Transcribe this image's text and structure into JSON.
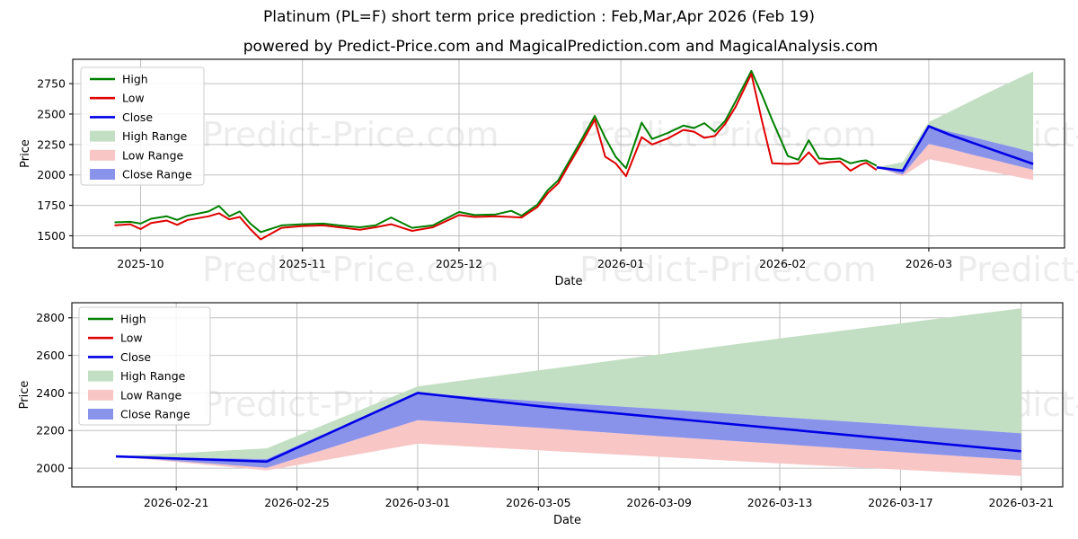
{
  "page": {
    "title": "Platinum (PL=F) short term price prediction : Feb,Mar,Apr 2026 (Feb 19)",
    "subtitle": "powered by Predict-Price.com and MagicalPrediction.com and MagicalAnalysis.com",
    "watermark_text": "Predict-Price.com"
  },
  "colors": {
    "high": "#008000",
    "low": "#e00000",
    "close": "#0000e6",
    "high_band": "#c3dfc3",
    "low_band": "#f9c6c6",
    "close_band": "#8a93ea",
    "grid": "#c0c0c0",
    "frame": "#1a1a1a"
  },
  "legend": [
    {
      "label": "High",
      "swatch": "line",
      "color": "high"
    },
    {
      "label": "Low",
      "swatch": "line",
      "color": "low"
    },
    {
      "label": "Close",
      "swatch": "line",
      "color": "close"
    },
    {
      "label": "High Range",
      "swatch": "patch",
      "color": "high_band"
    },
    {
      "label": "Low Range",
      "swatch": "patch",
      "color": "low_band"
    },
    {
      "label": "Close Range",
      "swatch": "patch",
      "color": "close_band"
    }
  ],
  "chart_data": [
    {
      "type": "line",
      "name": "history-and-prediction",
      "xlabel": "Date",
      "ylabel": "Price",
      "ylim": [
        1400,
        2950
      ],
      "x_domain": [
        "2025-09-18T00:00:00Z",
        "2026-03-27T00:00:00Z"
      ],
      "y_ticks": [
        1500,
        1750,
        2000,
        2250,
        2500,
        2750
      ],
      "x_ticks": [
        {
          "label": "2025-10",
          "date": "2025-10-01"
        },
        {
          "label": "2025-11",
          "date": "2025-11-01"
        },
        {
          "label": "2025-12",
          "date": "2025-12-01"
        },
        {
          "label": "2026-01",
          "date": "2026-01-01"
        },
        {
          "label": "2026-02",
          "date": "2026-02-01"
        },
        {
          "label": "2026-03",
          "date": "2026-03-01"
        }
      ],
      "history": {
        "dates": [
          "2025-09-26",
          "2025-09-29",
          "2025-10-01",
          "2025-10-03",
          "2025-10-06",
          "2025-10-08",
          "2025-10-10",
          "2025-10-14",
          "2025-10-16",
          "2025-10-18",
          "2025-10-20",
          "2025-10-22",
          "2025-10-24",
          "2025-10-28",
          "2025-11-01",
          "2025-11-05",
          "2025-11-08",
          "2025-11-12",
          "2025-11-15",
          "2025-11-18",
          "2025-11-22",
          "2025-11-26",
          "2025-12-01",
          "2025-12-04",
          "2025-12-08",
          "2025-12-11",
          "2025-12-13",
          "2025-12-16",
          "2025-12-18",
          "2025-12-20",
          "2025-12-22",
          "2025-12-24",
          "2025-12-27",
          "2025-12-29",
          "2025-12-31",
          "2026-01-02",
          "2026-01-05",
          "2026-01-07",
          "2026-01-10",
          "2026-01-13",
          "2026-01-15",
          "2026-01-17",
          "2026-01-19",
          "2026-01-21",
          "2026-01-23",
          "2026-01-26",
          "2026-01-28",
          "2026-01-30",
          "2026-02-02",
          "2026-02-04",
          "2026-02-06",
          "2026-02-08",
          "2026-02-10",
          "2026-02-12",
          "2026-02-14",
          "2026-02-16",
          "2026-02-17",
          "2026-02-19"
        ],
        "high": [
          1610,
          1615,
          1600,
          1640,
          1660,
          1630,
          1665,
          1700,
          1745,
          1660,
          1700,
          1600,
          1530,
          1585,
          1595,
          1600,
          1585,
          1570,
          1585,
          1650,
          1565,
          1585,
          1695,
          1670,
          1675,
          1705,
          1665,
          1755,
          1875,
          1955,
          2105,
          2255,
          2485,
          2305,
          2150,
          2055,
          2430,
          2295,
          2345,
          2405,
          2385,
          2425,
          2355,
          2445,
          2605,
          2855,
          2660,
          2450,
          2155,
          2125,
          2285,
          2135,
          2130,
          2135,
          2095,
          2115,
          2120,
          2075
        ],
        "low": [
          1585,
          1595,
          1555,
          1605,
          1625,
          1590,
          1630,
          1660,
          1685,
          1635,
          1655,
          1555,
          1470,
          1565,
          1580,
          1585,
          1570,
          1550,
          1570,
          1595,
          1540,
          1570,
          1670,
          1655,
          1660,
          1655,
          1650,
          1735,
          1850,
          1930,
          2080,
          2225,
          2455,
          2150,
          2095,
          1990,
          2310,
          2250,
          2300,
          2370,
          2355,
          2305,
          2320,
          2420,
          2560,
          2830,
          2450,
          2095,
          2090,
          2095,
          2185,
          2090,
          2105,
          2110,
          2035,
          2085,
          2100,
          2040
        ],
        "close": [
          1598,
          1605,
          1578,
          1622,
          1642,
          1610,
          1648,
          1680,
          1715,
          1648,
          1678,
          1578,
          1500,
          1575,
          1588,
          1592,
          1578,
          1560,
          1578,
          1622,
          1552,
          1578,
          1682,
          1662,
          1668,
          1680,
          1658,
          1745,
          1862,
          1942,
          2092,
          2240,
          2470,
          2228,
          2122,
          2022,
          2370,
          2272,
          2322,
          2388,
          2370,
          2365,
          2338,
          2432,
          2582,
          2842,
          2555,
          2272,
          2122,
          2110,
          2235,
          2112,
          2118,
          2122,
          2065,
          2100,
          2110,
          2058
        ]
      },
      "prediction": {
        "dates": [
          "2026-02-19",
          "2026-02-24",
          "2026-03-01",
          "2026-03-05",
          "2026-03-09",
          "2026-03-13",
          "2026-03-17",
          "2026-03-21"
        ],
        "close": [
          2062,
          2035,
          2400,
          2330,
          2270,
          2210,
          2150,
          2090
        ],
        "close_upper": [
          2062,
          2048,
          2400,
          2355,
          2315,
          2272,
          2230,
          2185
        ],
        "close_lower": [
          2062,
          2002,
          2255,
          2215,
          2170,
          2128,
          2085,
          2042
        ],
        "high_upper": [
          2062,
          2105,
          2435,
          2520,
          2605,
          2690,
          2770,
          2850
        ],
        "low_lower": [
          2062,
          1988,
          2130,
          2095,
          2060,
          2025,
          1992,
          1958
        ]
      }
    },
    {
      "type": "line",
      "name": "prediction-detail",
      "xlabel": "Date",
      "ylabel": "Price",
      "ylim": [
        1900,
        2880
      ],
      "x_domain": [
        "2026-02-17T13:00:00Z",
        "2026-03-22T09:00:00Z"
      ],
      "y_ticks": [
        2000,
        2200,
        2400,
        2600,
        2800
      ],
      "x_ticks": [
        {
          "label": "2026-02-21",
          "date": "2026-02-21"
        },
        {
          "label": "2026-02-25",
          "date": "2026-02-25"
        },
        {
          "label": "2026-03-01",
          "date": "2026-03-01"
        },
        {
          "label": "2026-03-05",
          "date": "2026-03-05"
        },
        {
          "label": "2026-03-09",
          "date": "2026-03-09"
        },
        {
          "label": "2026-03-13",
          "date": "2026-03-13"
        },
        {
          "label": "2026-03-17",
          "date": "2026-03-17"
        },
        {
          "label": "2026-03-21",
          "date": "2026-03-21"
        }
      ],
      "prediction": {
        "dates": [
          "2026-02-19",
          "2026-02-24",
          "2026-03-01",
          "2026-03-05",
          "2026-03-09",
          "2026-03-13",
          "2026-03-17",
          "2026-03-21"
        ],
        "close": [
          2062,
          2035,
          2400,
          2330,
          2270,
          2210,
          2150,
          2090
        ],
        "close_upper": [
          2062,
          2048,
          2400,
          2355,
          2315,
          2272,
          2230,
          2185
        ],
        "close_lower": [
          2062,
          2002,
          2255,
          2215,
          2170,
          2128,
          2085,
          2042
        ],
        "high_upper": [
          2062,
          2105,
          2435,
          2520,
          2605,
          2690,
          2770,
          2850
        ],
        "low_lower": [
          2062,
          1988,
          2130,
          2095,
          2060,
          2025,
          1992,
          1958
        ]
      }
    }
  ]
}
